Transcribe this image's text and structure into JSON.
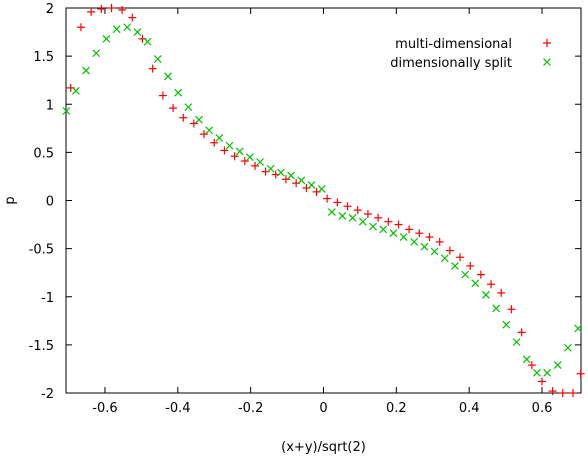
{
  "chart_data": {
    "type": "scatter",
    "title": "",
    "xlabel": "(x+y)/sqrt(2)",
    "ylabel": "p",
    "xlim": [
      -0.707,
      0.707
    ],
    "ylim": [
      -2,
      2
    ],
    "xticks": [
      -0.6,
      -0.4,
      -0.2,
      0,
      0.2,
      0.4,
      0.6
    ],
    "xtick_labels": [
      "-0.6",
      "-0.4",
      "-0.2",
      "0",
      "0.2",
      "0.4",
      "0.6"
    ],
    "yticks": [
      -2,
      -1.5,
      -1,
      -0.5,
      0,
      0.5,
      1,
      1.5,
      2
    ],
    "ytick_labels": [
      "-2",
      "-1.5",
      "-1",
      "-0.5",
      "0",
      "0.5",
      "1",
      "1.5",
      "2"
    ],
    "grid": false,
    "legend_position": "top-right",
    "colors": {
      "series1": "#ff0000",
      "series2": "#00c000"
    },
    "series": [
      {
        "name": "multi-dimensional",
        "marker": "plus",
        "x": [
          -0.694,
          -0.666,
          -0.638,
          -0.61,
          -0.582,
          -0.553,
          -0.525,
          -0.497,
          -0.469,
          -0.441,
          -0.413,
          -0.385,
          -0.356,
          -0.328,
          -0.3,
          -0.272,
          -0.244,
          -0.216,
          -0.188,
          -0.159,
          -0.131,
          -0.103,
          -0.075,
          -0.047,
          -0.019,
          0.01,
          0.038,
          0.066,
          0.094,
          0.122,
          0.15,
          0.178,
          0.206,
          0.235,
          0.263,
          0.291,
          0.319,
          0.347,
          0.375,
          0.403,
          0.432,
          0.46,
          0.488,
          0.516,
          0.544,
          0.572,
          0.6,
          0.629,
          0.657,
          0.685,
          0.706
        ],
        "y": [
          1.17,
          1.8,
          1.96,
          1.99,
          2.0,
          1.98,
          1.9,
          1.68,
          1.37,
          1.09,
          0.96,
          0.86,
          0.8,
          0.69,
          0.6,
          0.52,
          0.46,
          0.41,
          0.36,
          0.3,
          0.27,
          0.22,
          0.18,
          0.13,
          0.09,
          0.02,
          -0.02,
          -0.06,
          -0.1,
          -0.14,
          -0.18,
          -0.22,
          -0.25,
          -0.3,
          -0.34,
          -0.38,
          -0.43,
          -0.52,
          -0.59,
          -0.68,
          -0.77,
          -0.87,
          -0.96,
          -1.13,
          -1.37,
          -1.71,
          -1.88,
          -1.98,
          -2.0,
          -2.0,
          -1.8
        ]
      },
      {
        "name": "dimensionally split",
        "marker": "cross",
        "x": [
          -0.706,
          -0.68,
          -0.652,
          -0.624,
          -0.596,
          -0.568,
          -0.539,
          -0.511,
          -0.483,
          -0.455,
          -0.427,
          -0.399,
          -0.371,
          -0.342,
          -0.314,
          -0.286,
          -0.258,
          -0.23,
          -0.202,
          -0.174,
          -0.145,
          -0.117,
          -0.089,
          -0.061,
          -0.033,
          -0.005,
          0.023,
          0.052,
          0.08,
          0.108,
          0.136,
          0.164,
          0.192,
          0.22,
          0.249,
          0.277,
          0.305,
          0.333,
          0.361,
          0.389,
          0.417,
          0.446,
          0.474,
          0.502,
          0.53,
          0.558,
          0.586,
          0.614,
          0.643,
          0.671,
          0.699
        ],
        "y": [
          0.93,
          1.14,
          1.35,
          1.53,
          1.68,
          1.78,
          1.8,
          1.75,
          1.65,
          1.47,
          1.29,
          1.12,
          0.97,
          0.84,
          0.73,
          0.65,
          0.57,
          0.51,
          0.45,
          0.4,
          0.33,
          0.29,
          0.26,
          0.21,
          0.16,
          0.12,
          -0.12,
          -0.16,
          -0.18,
          -0.22,
          -0.27,
          -0.3,
          -0.34,
          -0.38,
          -0.43,
          -0.48,
          -0.53,
          -0.6,
          -0.68,
          -0.77,
          -0.86,
          -0.98,
          -1.12,
          -1.29,
          -1.47,
          -1.65,
          -1.79,
          -1.79,
          -1.71,
          -1.53,
          -1.33
        ]
      }
    ]
  }
}
